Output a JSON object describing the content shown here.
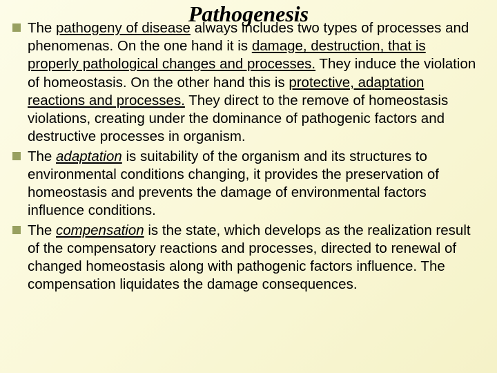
{
  "title": {
    "text": "Pathogenesis",
    "fontSize": 32,
    "color": "#000000"
  },
  "body": {
    "fontSize": 20.5,
    "color": "#000000"
  },
  "bullet": {
    "color": "#98a060",
    "size": 12
  },
  "items": [
    {
      "pre": "The ",
      "u1": "pathogeny of disease",
      "mid1": " always includes two types of processes and phenomenas. On the one hand it is ",
      "u2": "damage, destruction, that is properly pathological changes and processes.",
      "mid2": " They induce  the violation of homeostasis. On the other hand this is ",
      "u3": "protective, adaptation reactions and processes.",
      "post": " They direct to the remove of homeostasis violations, creating under the dominance of pathogenic factors and destructive processes in organism."
    },
    {
      "pre": "The ",
      "term": "adaptation",
      "post": " is suitability of the organism and its structures to environmental conditions changing, it provides the preservation of homeostasis and prevents the damage of environmental factors influence conditions."
    },
    {
      "pre": "The ",
      "term": "compensation",
      "post": " is the state, which develops as the realization result of the compensatory reactions and processes, directed to renewal of changed homeostasis along with pathogenic factors influence. The compensation liquidates the damage consequences."
    }
  ]
}
